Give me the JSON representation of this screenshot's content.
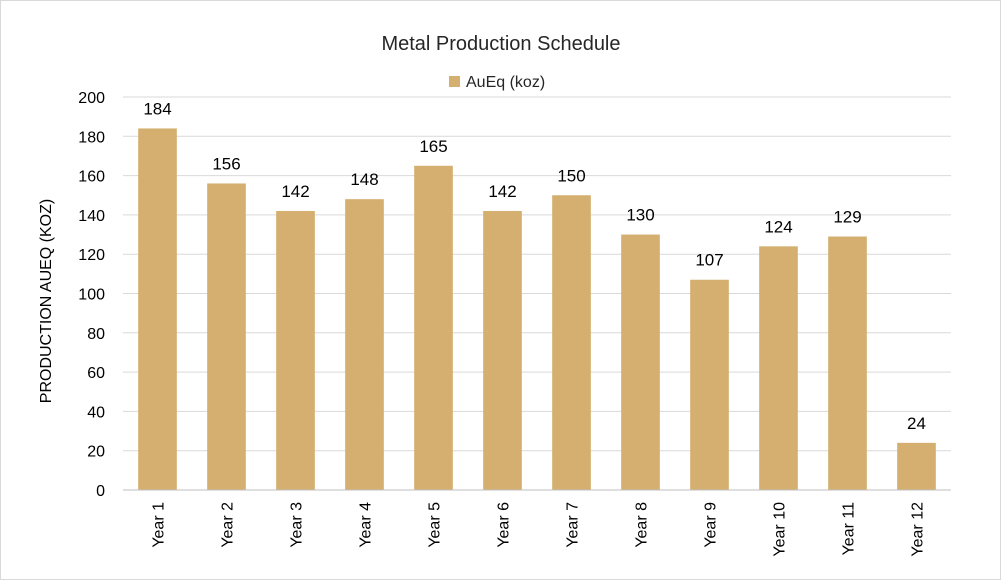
{
  "chart_data": {
    "type": "bar",
    "title": "Metal Production Schedule",
    "xlabel": "",
    "ylabel": "PRODUCTION AUEQ (KOZ)",
    "categories": [
      "Year 1",
      "Year 2",
      "Year 3",
      "Year 4",
      "Year 5",
      "Year 6",
      "Year 7",
      "Year 8",
      "Year 9",
      "Year 10",
      "Year 11",
      "Year 12"
    ],
    "series": [
      {
        "name": "AuEq (koz)",
        "values": [
          184,
          156,
          142,
          148,
          165,
          142,
          150,
          130,
          107,
          124,
          129,
          24
        ],
        "color": "#d4af6f"
      }
    ],
    "ylim": [
      0,
      200
    ],
    "yticks": [
      0,
      20,
      40,
      60,
      80,
      100,
      120,
      140,
      160,
      180,
      200
    ],
    "grid": true,
    "legend_position": "top"
  }
}
